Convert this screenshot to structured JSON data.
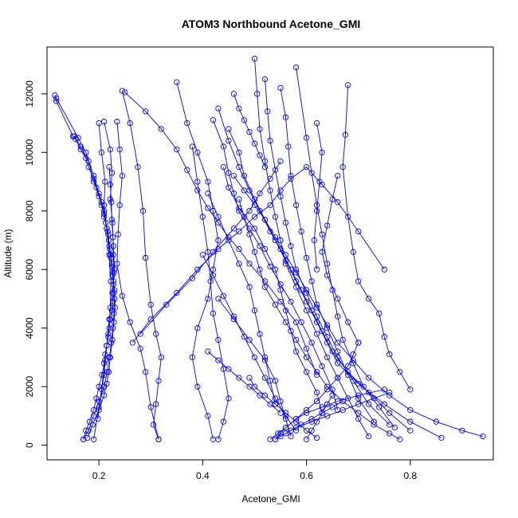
{
  "chart_data": {
    "type": "line",
    "title": "ATOM3 Northbound Acetone_GMI",
    "xlabel": "Acetone_GMI",
    "ylabel": "Altitude (m)",
    "xlim": [
      0.1,
      0.96
    ],
    "ylim": [
      -500,
      13600
    ],
    "xticks": [
      0.2,
      0.4,
      0.6,
      0.8
    ],
    "xtick_labels": [
      "0.2",
      "0.4",
      "0.6",
      "0.8"
    ],
    "yticks": [
      0,
      2000,
      4000,
      6000,
      8000,
      10000,
      12000
    ],
    "ytick_labels": [
      "0",
      "2000",
      "4000",
      "6000",
      "8000",
      "10000",
      "12000"
    ],
    "grid": false,
    "legend": "none",
    "series_color": "#0000ff",
    "series": [
      {
        "x": [
          0.115,
          0.118,
          0.15,
          0.155,
          0.165,
          0.175,
          0.18,
          0.19,
          0.195,
          0.2,
          0.205,
          0.21,
          0.213,
          0.217,
          0.219,
          0.221,
          0.223,
          0.225,
          0.226,
          0.228,
          0.229,
          0.227,
          0.225,
          0.222,
          0.22,
          0.218,
          0.215,
          0.212,
          0.21,
          0.206,
          0.2,
          0.195,
          0.19,
          0.182,
          0.175,
          0.17
        ],
        "y": [
          11950,
          11750,
          10550,
          10450,
          10100,
          9800,
          9500,
          9100,
          8800,
          8500,
          8200,
          7900,
          7600,
          7300,
          7000,
          6700,
          6400,
          6100,
          5800,
          5500,
          5200,
          4900,
          4600,
          4300,
          4000,
          3700,
          3400,
          3100,
          2800,
          2400,
          2000,
          1600,
          1200,
          800,
          500,
          200
        ]
      },
      {
        "x": [
          0.118,
          0.16,
          0.175,
          0.19,
          0.2,
          0.21,
          0.215,
          0.22,
          0.225,
          0.228,
          0.23,
          0.229,
          0.227,
          0.224,
          0.22,
          0.216,
          0.21,
          0.2,
          0.19,
          0.18,
          0.17
        ],
        "y": [
          11850,
          10500,
          10000,
          9200,
          8600,
          8000,
          7400,
          6800,
          6200,
          5600,
          5000,
          4500,
          4000,
          3500,
          3000,
          2500,
          2000,
          1500,
          1000,
          500,
          200
        ]
      },
      {
        "x": [
          0.152,
          0.165,
          0.18,
          0.19,
          0.205,
          0.21,
          0.218,
          0.222,
          0.226,
          0.23,
          0.231,
          0.229,
          0.226,
          0.222,
          0.219,
          0.215,
          0.21,
          0.2,
          0.188,
          0.178
        ],
        "y": [
          10550,
          10200,
          9700,
          9000,
          8300,
          7800,
          7200,
          6500,
          5900,
          5300,
          4700,
          4200,
          3600,
          3000,
          2500,
          2100,
          1700,
          1200,
          700,
          250
        ]
      },
      {
        "x": [
          0.21,
          0.222,
          0.225,
          0.222,
          0.226,
          0.228,
          0.23,
          0.226,
          0.22,
          0.215,
          0.21,
          0.2,
          0.19
        ],
        "y": [
          11050,
          10100,
          9300,
          8400,
          7600,
          6800,
          6000,
          5200,
          4300,
          3400,
          2400,
          1300,
          200
        ]
      },
      {
        "x": [
          0.2,
          0.205,
          0.212,
          0.21,
          0.215,
          0.22,
          0.223,
          0.222,
          0.218,
          0.212,
          0.205,
          0.198
        ],
        "y": [
          11000,
          10000,
          9000,
          8200,
          7400,
          6500,
          5600,
          4700,
          3800,
          2900,
          1900,
          900
        ]
      },
      {
        "x": [
          0.235,
          0.24,
          0.245,
          0.24,
          0.237,
          0.235,
          0.245,
          0.26,
          0.28,
          0.29,
          0.3,
          0.315
        ],
        "y": [
          11050,
          10100,
          9200,
          8200,
          7200,
          6200,
          5100,
          4200,
          3300,
          2500,
          1300,
          200
        ]
      },
      {
        "x": [
          0.245,
          0.26,
          0.275,
          0.285,
          0.29,
          0.3,
          0.31,
          0.32,
          0.315,
          0.31,
          0.305,
          0.315
        ],
        "y": [
          12100,
          11000,
          9500,
          8000,
          6400,
          4800,
          3800,
          3000,
          2200,
          1400,
          700,
          200
        ]
      },
      {
        "x": [
          0.25,
          0.29,
          0.32,
          0.35,
          0.37,
          0.39,
          0.41,
          0.43,
          0.45,
          0.47,
          0.49,
          0.52,
          0.55,
          0.58,
          0.6,
          0.62
        ],
        "y": [
          12050,
          11400,
          10800,
          10100,
          9400,
          8700,
          8100,
          7600,
          7100,
          6700,
          6200,
          5600,
          4900,
          4200,
          3300,
          2400
        ]
      },
      {
        "x": [
          0.265,
          0.3,
          0.35,
          0.39,
          0.43,
          0.47,
          0.5,
          0.53,
          0.55,
          0.57,
          0.6,
          0.63,
          0.66,
          0.7,
          0.75
        ],
        "y": [
          3500,
          4300,
          5200,
          6000,
          6700,
          7300,
          7800,
          8200,
          8700,
          9100,
          9500,
          8900,
          8300,
          7300,
          6000
        ]
      },
      {
        "x": [
          0.28,
          0.33,
          0.38,
          0.42,
          0.46,
          0.49,
          0.51,
          0.53,
          0.55
        ],
        "y": [
          3800,
          4800,
          5700,
          6600,
          7400,
          8000,
          8600,
          9100,
          9700
        ]
      },
      {
        "x": [
          0.35,
          0.37,
          0.39,
          0.41,
          0.42,
          0.43,
          0.42,
          0.41,
          0.39,
          0.38,
          0.39,
          0.41,
          0.42
        ],
        "y": [
          12400,
          11000,
          10000,
          9000,
          8000,
          7000,
          6000,
          5000,
          4000,
          3000,
          2000,
          1000,
          200
        ]
      },
      {
        "x": [
          0.38,
          0.39,
          0.4,
          0.41,
          0.415,
          0.42,
          0.43,
          0.44,
          0.45,
          0.44,
          0.43
        ],
        "y": [
          10200,
          9000,
          7800,
          6600,
          5600,
          4500,
          3600,
          2600,
          1600,
          800,
          200
        ]
      },
      {
        "x": [
          0.42,
          0.44,
          0.45,
          0.46,
          0.47,
          0.49,
          0.51,
          0.53,
          0.55,
          0.57,
          0.59,
          0.61,
          0.63,
          0.65,
          0.66
        ],
        "y": [
          11100,
          10200,
          9300,
          8600,
          8000,
          7400,
          6800,
          6100,
          5500,
          4900,
          4200,
          3500,
          2700,
          1900,
          1200
        ]
      },
      {
        "x": [
          0.43,
          0.45,
          0.47,
          0.49,
          0.51,
          0.53,
          0.55,
          0.57,
          0.59,
          0.61,
          0.63,
          0.65,
          0.68,
          0.72,
          0.76,
          0.8
        ],
        "y": [
          11500,
          10400,
          9500,
          8700,
          8000,
          7300,
          6700,
          6000,
          5300,
          4600,
          3900,
          3200,
          2500,
          1800,
          1100,
          500
        ]
      },
      {
        "x": [
          0.45,
          0.47,
          0.48,
          0.5,
          0.52,
          0.54,
          0.56,
          0.58,
          0.6,
          0.62,
          0.64,
          0.66,
          0.7,
          0.75,
          0.8,
          0.86
        ],
        "y": [
          10800,
          10000,
          9200,
          8400,
          7700,
          7000,
          6300,
          5600,
          4900,
          4200,
          3500,
          2800,
          2100,
          1400,
          800,
          250
        ]
      },
      {
        "x": [
          0.46,
          0.48,
          0.5,
          0.52,
          0.54,
          0.56,
          0.58,
          0.6,
          0.62,
          0.64,
          0.66,
          0.69,
          0.72,
          0.76,
          0.8,
          0.85,
          0.9,
          0.94
        ],
        "y": [
          9200,
          8700,
          8200,
          7700,
          7100,
          6500,
          5900,
          5300,
          4700,
          4100,
          3500,
          2900,
          2300,
          1700,
          1200,
          800,
          500,
          300
        ]
      },
      {
        "x": [
          0.47,
          0.48,
          0.49,
          0.5,
          0.51,
          0.52,
          0.54,
          0.56,
          0.58,
          0.6,
          0.62,
          0.64,
          0.67,
          0.7,
          0.73,
          0.76,
          0.78
        ],
        "y": [
          8400,
          7800,
          7200,
          6600,
          6000,
          5400,
          4800,
          4200,
          3600,
          3000,
          2500,
          2000,
          1500,
          1100,
          700,
          400,
          200
        ]
      },
      {
        "x": [
          0.5,
          0.505,
          0.51,
          0.52,
          0.53,
          0.54,
          0.55,
          0.56,
          0.58,
          0.6,
          0.62,
          0.64,
          0.66,
          0.68,
          0.7,
          0.72
        ],
        "y": [
          13200,
          12000,
          10800,
          9700,
          8700,
          7800,
          7000,
          6200,
          5400,
          4600,
          3800,
          3000,
          2300,
          1600,
          900,
          300
        ]
      },
      {
        "x": [
          0.52,
          0.525,
          0.53,
          0.54,
          0.55,
          0.56,
          0.57,
          0.58,
          0.6,
          0.62,
          0.64,
          0.66,
          0.69,
          0.72,
          0.76
        ],
        "y": [
          12500,
          11400,
          10400,
          9400,
          8500,
          7600,
          6800,
          6000,
          5200,
          4400,
          3700,
          3000,
          2200,
          1400,
          700
        ]
      },
      {
        "x": [
          0.55,
          0.56,
          0.565,
          0.57,
          0.58,
          0.59,
          0.6,
          0.61,
          0.62,
          0.64,
          0.66,
          0.68,
          0.7,
          0.73
        ],
        "y": [
          12200,
          11200,
          10200,
          9200,
          8200,
          7300,
          6400,
          5600,
          4800,
          4000,
          3200,
          2400,
          1600,
          800
        ]
      },
      {
        "x": [
          0.58,
          0.6,
          0.61,
          0.62,
          0.63,
          0.64,
          0.65,
          0.66,
          0.67,
          0.69,
          0.71,
          0.74,
          0.77
        ],
        "y": [
          12900,
          10500,
          9300,
          8200,
          7200,
          6200,
          5300,
          4400,
          3600,
          2800,
          2000,
          1300,
          600
        ]
      },
      {
        "x": [
          0.68,
          0.675,
          0.67,
          0.68,
          0.69,
          0.7,
          0.72,
          0.74,
          0.75,
          0.76,
          0.78,
          0.8
        ],
        "y": [
          12300,
          10600,
          9500,
          7800,
          6600,
          5600,
          5000,
          4500,
          3700,
          3100,
          2500,
          1900
        ]
      },
      {
        "x": [
          0.66,
          0.65,
          0.64,
          0.63,
          0.64,
          0.66,
          0.68,
          0.7
        ],
        "y": [
          9200,
          8400,
          7500,
          6600,
          5800,
          5000,
          4200,
          3500
        ]
      },
      {
        "x": [
          0.62,
          0.63,
          0.625,
          0.62,
          0.615,
          0.62
        ],
        "y": [
          11000,
          10000,
          9000,
          8000,
          7000,
          6000
        ]
      },
      {
        "x": [
          0.46,
          0.47,
          0.48,
          0.49,
          0.5,
          0.51,
          0.52
        ],
        "y": [
          12000,
          11500,
          11100,
          10700,
          10300,
          9900,
          9500
        ]
      },
      {
        "x": [
          0.44,
          0.45,
          0.47,
          0.5,
          0.52,
          0.54,
          0.55,
          0.56,
          0.57,
          0.58,
          0.6,
          0.62,
          0.63
        ],
        "y": [
          9500,
          8800,
          8100,
          7400,
          6700,
          6000,
          5300,
          4600,
          3900,
          3200,
          2500,
          1800,
          1100
        ]
      },
      {
        "x": [
          0.41,
          0.43,
          0.45,
          0.47,
          0.49,
          0.5,
          0.51,
          0.52,
          0.53,
          0.54
        ],
        "y": [
          8600,
          7800,
          7000,
          6200,
          5400,
          4600,
          3800,
          3000,
          2200,
          1400
        ]
      },
      {
        "x": [
          0.4,
          0.42,
          0.44,
          0.46,
          0.48,
          0.5,
          0.52,
          0.54,
          0.56,
          0.58
        ],
        "y": [
          6500,
          5800,
          5100,
          4400,
          3700,
          3000,
          2300,
          1600,
          1000,
          500
        ]
      },
      {
        "x": [
          0.43,
          0.46,
          0.49,
          0.52,
          0.54,
          0.55,
          0.56,
          0.57
        ],
        "y": [
          5000,
          4300,
          3600,
          2900,
          2200,
          1500,
          900,
          300
        ]
      },
      {
        "x": [
          0.53,
          0.545,
          0.56,
          0.58,
          0.6,
          0.63,
          0.66,
          0.7,
          0.75
        ],
        "y": [
          200,
          400,
          600,
          900,
          1100,
          1300,
          1500,
          1700,
          1900
        ]
      },
      {
        "x": [
          0.55,
          0.57,
          0.59,
          0.61,
          0.63,
          0.65,
          0.67
        ],
        "y": [
          300,
          500,
          700,
          900,
          1100,
          1300,
          1500
        ]
      },
      {
        "x": [
          0.49,
          0.5,
          0.52,
          0.54,
          0.56,
          0.58,
          0.6,
          0.62
        ],
        "y": [
          2300,
          2000,
          1700,
          1400,
          1100,
          800,
          500,
          250
        ]
      },
      {
        "x": [
          0.6,
          0.61,
          0.62,
          0.63,
          0.64,
          0.65
        ],
        "y": [
          200,
          500,
          800,
          1100,
          1400,
          1700
        ]
      },
      {
        "x": [
          0.22,
          0.222,
          0.224,
          0.225,
          0.227,
          0.228,
          0.229
        ],
        "y": [
          9500,
          8900,
          8300,
          7700,
          7100,
          6500,
          5900
        ]
      },
      {
        "x": [
          0.7,
          0.69,
          0.68,
          0.66,
          0.64,
          0.62,
          0.6,
          0.58,
          0.56,
          0.55,
          0.54
        ],
        "y": [
          3500,
          3100,
          2700,
          2300,
          1900,
          1500,
          1200,
          900,
          600,
          400,
          200
        ]
      },
      {
        "x": [
          0.76,
          0.73,
          0.7,
          0.67,
          0.64,
          0.61,
          0.58,
          0.56,
          0.54
        ],
        "y": [
          1800,
          1600,
          1400,
          1200,
          1000,
          800,
          600,
          400,
          200
        ]
      },
      {
        "x": [
          0.41,
          0.43,
          0.45,
          0.47,
          0.49,
          0.51,
          0.53,
          0.55
        ],
        "y": [
          3200,
          2900,
          2600,
          2300,
          2000,
          1700,
          1400,
          1100
        ]
      }
    ]
  }
}
